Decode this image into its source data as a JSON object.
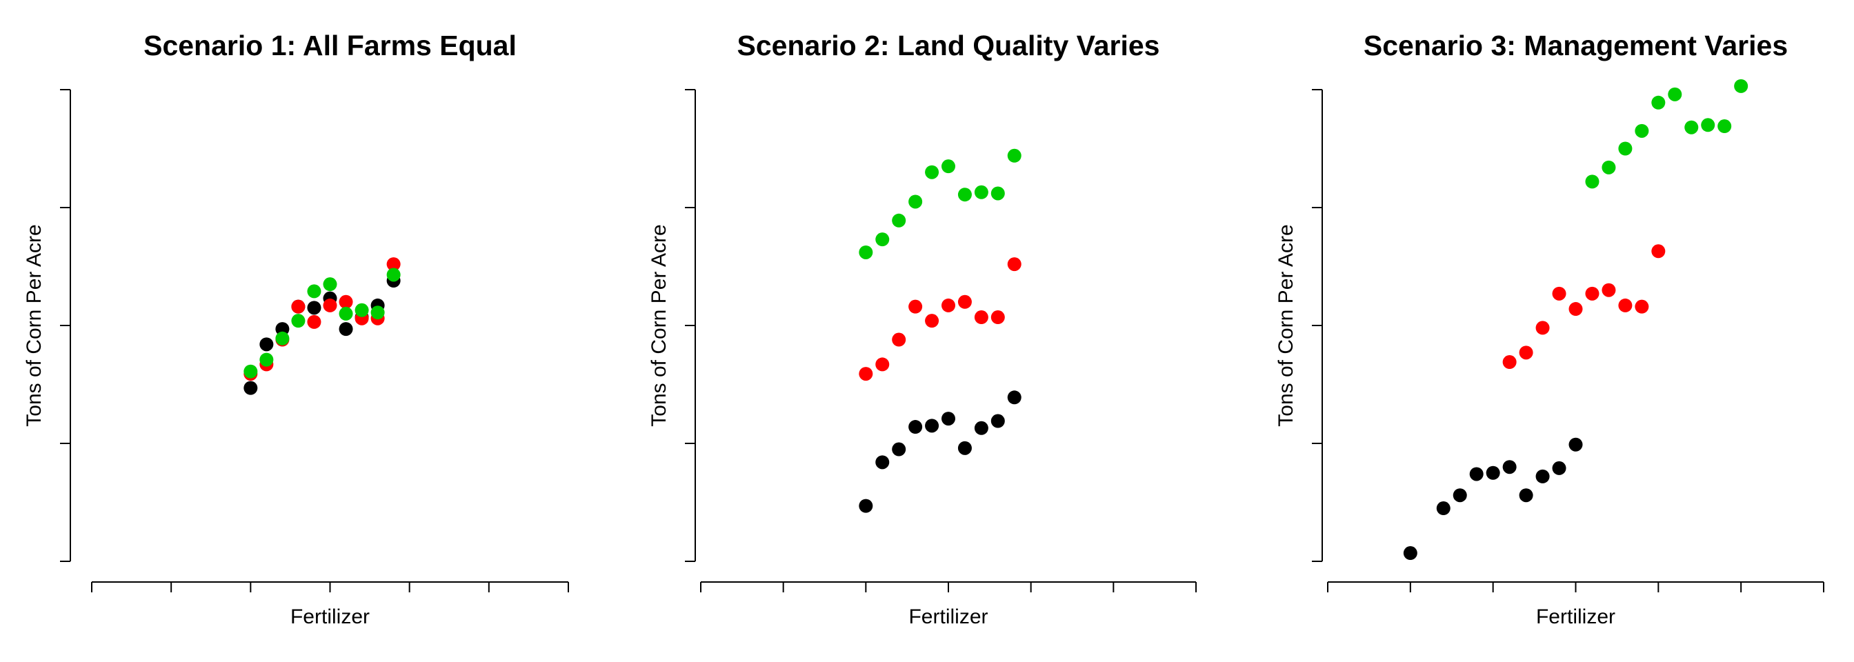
{
  "colors": {
    "black": "#000000",
    "red": "#ff0000",
    "green": "#00cc00"
  },
  "chart_data": [
    {
      "type": "scatter",
      "title": "Scenario 1: All Farms Equal",
      "xlabel": "Fertilizer",
      "ylabel": "Tons of Corn Per Acre",
      "xlim": [
        0,
        6
      ],
      "ylim": [
        0,
        4
      ],
      "xticks": [
        0,
        1,
        2,
        3,
        4,
        5,
        6
      ],
      "yticks": [
        0,
        1,
        2,
        3,
        4
      ],
      "tick_labels_shown": false,
      "grid": false,
      "legend": "none",
      "series": [
        {
          "color": "black",
          "points": [
            [
              2.0,
              1.47
            ],
            [
              2.2,
              1.84
            ],
            [
              2.4,
              1.97
            ],
            [
              2.6,
              2.16
            ],
            [
              2.8,
              2.15
            ],
            [
              3.0,
              2.23
            ],
            [
              3.2,
              1.97
            ],
            [
              3.4,
              2.07
            ],
            [
              3.6,
              2.17
            ],
            [
              3.8,
              2.38
            ]
          ]
        },
        {
          "color": "red",
          "points": [
            [
              2.0,
              1.59
            ],
            [
              2.2,
              1.67
            ],
            [
              2.4,
              1.88
            ],
            [
              2.6,
              2.16
            ],
            [
              2.8,
              2.03
            ],
            [
              3.0,
              2.17
            ],
            [
              3.2,
              2.2
            ],
            [
              3.4,
              2.06
            ],
            [
              3.6,
              2.06
            ],
            [
              3.8,
              2.52
            ]
          ]
        },
        {
          "color": "green",
          "points": [
            [
              2.0,
              1.61
            ],
            [
              2.2,
              1.71
            ],
            [
              2.4,
              1.89
            ],
            [
              2.6,
              2.04
            ],
            [
              2.8,
              2.29
            ],
            [
              3.0,
              2.35
            ],
            [
              3.2,
              2.1
            ],
            [
              3.4,
              2.13
            ],
            [
              3.6,
              2.11
            ],
            [
              3.8,
              2.43
            ]
          ]
        }
      ]
    },
    {
      "type": "scatter",
      "title": "Scenario 2: Land Quality Varies",
      "xlabel": "Fertilizer",
      "ylabel": "Tons of Corn Per Acre",
      "xlim": [
        0,
        6
      ],
      "ylim": [
        0,
        4
      ],
      "xticks": [
        0,
        1,
        2,
        3,
        4,
        5,
        6
      ],
      "yticks": [
        0,
        1,
        2,
        3,
        4
      ],
      "tick_labels_shown": false,
      "grid": false,
      "legend": "none",
      "series": [
        {
          "color": "black",
          "points": [
            [
              2.0,
              0.47
            ],
            [
              2.2,
              0.84
            ],
            [
              2.4,
              0.95
            ],
            [
              2.6,
              1.14
            ],
            [
              2.8,
              1.15
            ],
            [
              3.0,
              1.21
            ],
            [
              3.2,
              0.96
            ],
            [
              3.4,
              1.13
            ],
            [
              3.6,
              1.19
            ],
            [
              3.8,
              1.39
            ]
          ]
        },
        {
          "color": "red",
          "points": [
            [
              2.0,
              1.59
            ],
            [
              2.2,
              1.67
            ],
            [
              2.4,
              1.88
            ],
            [
              2.6,
              2.16
            ],
            [
              2.8,
              2.04
            ],
            [
              3.0,
              2.17
            ],
            [
              3.2,
              2.2
            ],
            [
              3.4,
              2.07
            ],
            [
              3.6,
              2.07
            ],
            [
              3.8,
              2.52
            ]
          ]
        },
        {
          "color": "green",
          "points": [
            [
              2.0,
              2.62
            ],
            [
              2.2,
              2.73
            ],
            [
              2.4,
              2.89
            ],
            [
              2.6,
              3.05
            ],
            [
              2.8,
              3.3
            ],
            [
              3.0,
              3.35
            ],
            [
              3.2,
              3.11
            ],
            [
              3.4,
              3.13
            ],
            [
              3.6,
              3.12
            ],
            [
              3.8,
              3.44
            ]
          ]
        }
      ]
    },
    {
      "type": "scatter",
      "title": "Scenario 3: Management Varies",
      "xlabel": "Fertilizer",
      "ylabel": "Tons of Corn Per Acre",
      "xlim": [
        0,
        6
      ],
      "ylim": [
        0,
        4
      ],
      "xticks": [
        0,
        1,
        2,
        3,
        4,
        5,
        6
      ],
      "yticks": [
        0,
        1,
        2,
        3,
        4
      ],
      "tick_labels_shown": false,
      "grid": false,
      "legend": "none",
      "series": [
        {
          "color": "black",
          "points": [
            [
              1.0,
              0.07
            ],
            [
              1.4,
              0.45
            ],
            [
              1.6,
              0.56
            ],
            [
              1.8,
              0.74
            ],
            [
              2.0,
              0.75
            ],
            [
              2.2,
              0.8
            ],
            [
              2.4,
              0.56
            ],
            [
              2.6,
              0.72
            ],
            [
              2.8,
              0.79
            ],
            [
              3.0,
              0.99
            ]
          ]
        },
        {
          "color": "red",
          "points": [
            [
              2.2,
              1.69
            ],
            [
              2.4,
              1.77
            ],
            [
              2.6,
              1.98
            ],
            [
              2.8,
              2.27
            ],
            [
              3.0,
              2.14
            ],
            [
              3.2,
              2.27
            ],
            [
              3.4,
              2.3
            ],
            [
              3.6,
              2.17
            ],
            [
              3.8,
              2.16
            ],
            [
              4.0,
              2.63
            ]
          ]
        },
        {
          "color": "green",
          "points": [
            [
              3.2,
              3.22
            ],
            [
              3.4,
              3.34
            ],
            [
              3.6,
              3.5
            ],
            [
              3.8,
              3.65
            ],
            [
              4.0,
              3.89
            ],
            [
              4.2,
              3.96
            ],
            [
              4.4,
              3.68
            ],
            [
              4.6,
              3.7
            ],
            [
              4.8,
              3.69
            ],
            [
              5.0,
              4.03
            ]
          ]
        }
      ]
    }
  ]
}
